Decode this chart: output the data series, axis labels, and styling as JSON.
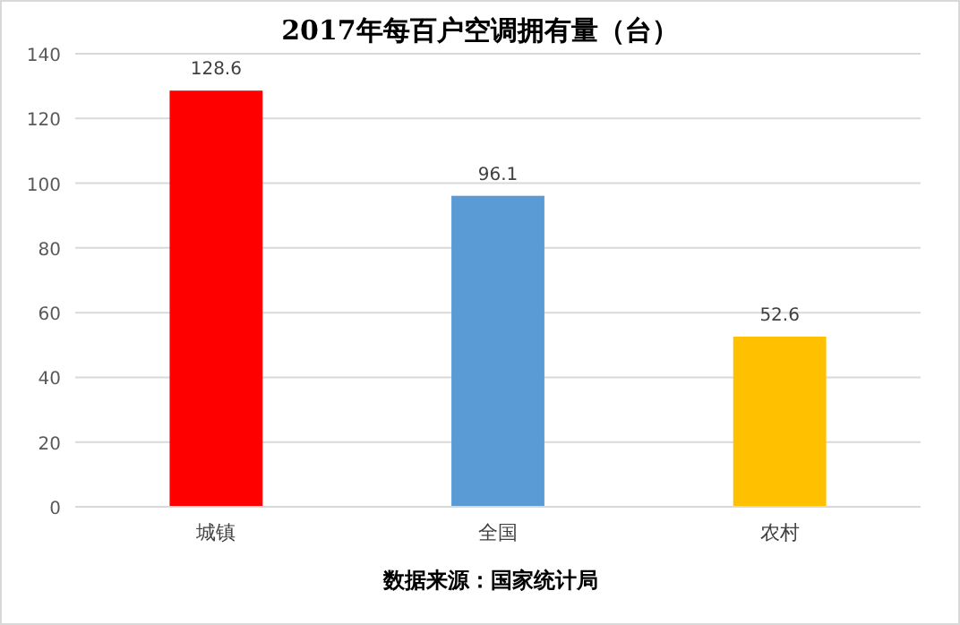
{
  "chart_data": {
    "type": "bar",
    "title": "2017年每百户空调拥有量（台）",
    "categories": [
      "城镇",
      "全国",
      "农村"
    ],
    "values": [
      128.6,
      96.1,
      52.6
    ],
    "colors": [
      "#ff0000",
      "#5b9bd5",
      "#ffc000"
    ],
    "ylim": [
      0,
      140
    ],
    "yticks": [
      0,
      20,
      40,
      60,
      80,
      100,
      120,
      140
    ],
    "grid": "y",
    "data_labels": true,
    "annotations": [
      "数据来源：国家统计局"
    ]
  }
}
